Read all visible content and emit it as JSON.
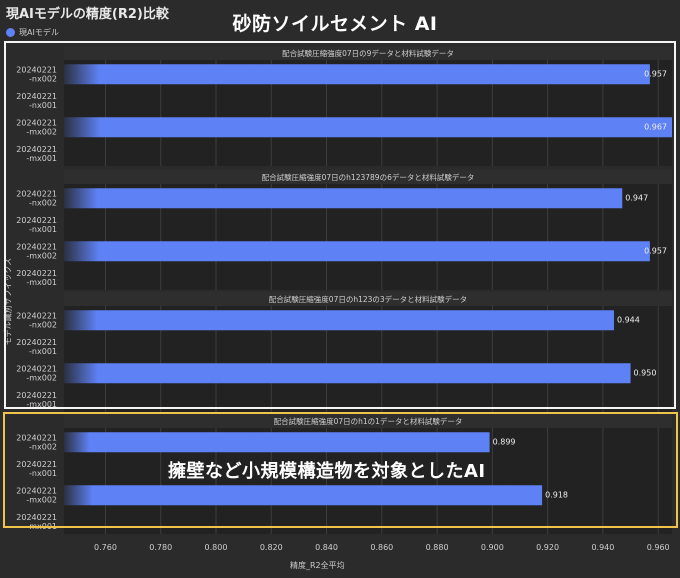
{
  "title": "現AIモデルの精度(R2)比較",
  "overlay_top": "砂防ソイルセメント AI",
  "overlay_mid": "擁壁など小規模構造物を対象としたAI",
  "colors": {
    "bar": "#5e81f5",
    "panel": "#222222",
    "header": "#2e2e2e",
    "highlight_top": "#f5f5f5",
    "highlight_bottom": "#f0c44a"
  },
  "chart_data": {
    "type": "bar",
    "orientation": "horizontal",
    "title": "現AIモデルの精度(R2)比較",
    "xlabel": "精度_R2全平均",
    "ylabel": "モデル識別サフィックス",
    "xlim": [
      0.745,
      0.965
    ],
    "xticks": [
      "0.760",
      "0.780",
      "0.800",
      "0.820",
      "0.840",
      "0.860",
      "0.880",
      "0.900",
      "0.920",
      "0.940",
      "0.960"
    ],
    "legend": [
      {
        "name": "現AIモデル",
        "color": "#5e81f5"
      }
    ],
    "legend_position": "top-left",
    "grid": true,
    "panels": [
      {
        "title": "配合試験圧縮強度07日の9データと材料試験データ",
        "rows": [
          {
            "label": "20240221\n-nx002",
            "value": 0.957,
            "value_label": "0.957"
          },
          {
            "label": "20240221\n-nx001",
            "value": null
          },
          {
            "label": "20240221\n-mx002",
            "value": 0.967,
            "value_label": "0.967"
          },
          {
            "label": "20240221\n-mx001",
            "value": null
          }
        ]
      },
      {
        "title": "配合試験圧縮強度07日のh123789の6データと材料試験データ",
        "rows": [
          {
            "label": "20240221\n-nx002",
            "value": 0.947,
            "value_label": "0.947"
          },
          {
            "label": "20240221\n-nx001",
            "value": null
          },
          {
            "label": "20240221\n-mx002",
            "value": 0.957,
            "value_label": "0.957"
          },
          {
            "label": "20240221\n-mx001",
            "value": null
          }
        ]
      },
      {
        "title": "配合試験圧縮強度07日のh123の3データと材料試験データ",
        "rows": [
          {
            "label": "20240221\n-nx002",
            "value": 0.944,
            "value_label": "0.944"
          },
          {
            "label": "20240221\n-nx001",
            "value": null
          },
          {
            "label": "20240221\n-mx002",
            "value": 0.95,
            "value_label": "0.950"
          },
          {
            "label": "20240221\n-mx001",
            "value": null
          }
        ]
      },
      {
        "title": "配合試験圧縮強度07日のh1の1データと材料試験データ",
        "rows": [
          {
            "label": "20240221\n-nx002",
            "value": 0.899,
            "value_label": "0.899"
          },
          {
            "label": "20240221\n-nx001",
            "value": null
          },
          {
            "label": "20240221\n-mx002",
            "value": 0.918,
            "value_label": "0.918"
          },
          {
            "label": "20240221\n-mx001",
            "value": null
          }
        ]
      }
    ]
  }
}
